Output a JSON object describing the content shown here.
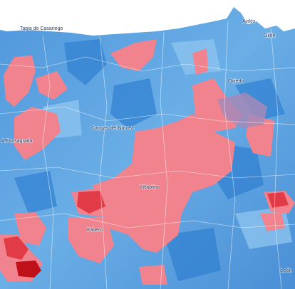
{
  "map": {
    "labels": [
      "Tapia de Casariego",
      "Avilés",
      "Gijón",
      "Oviedo",
      "A Fonsagrada",
      "Cangas del Narcea",
      "Villablino",
      "Fabero",
      "León"
    ]
  }
}
